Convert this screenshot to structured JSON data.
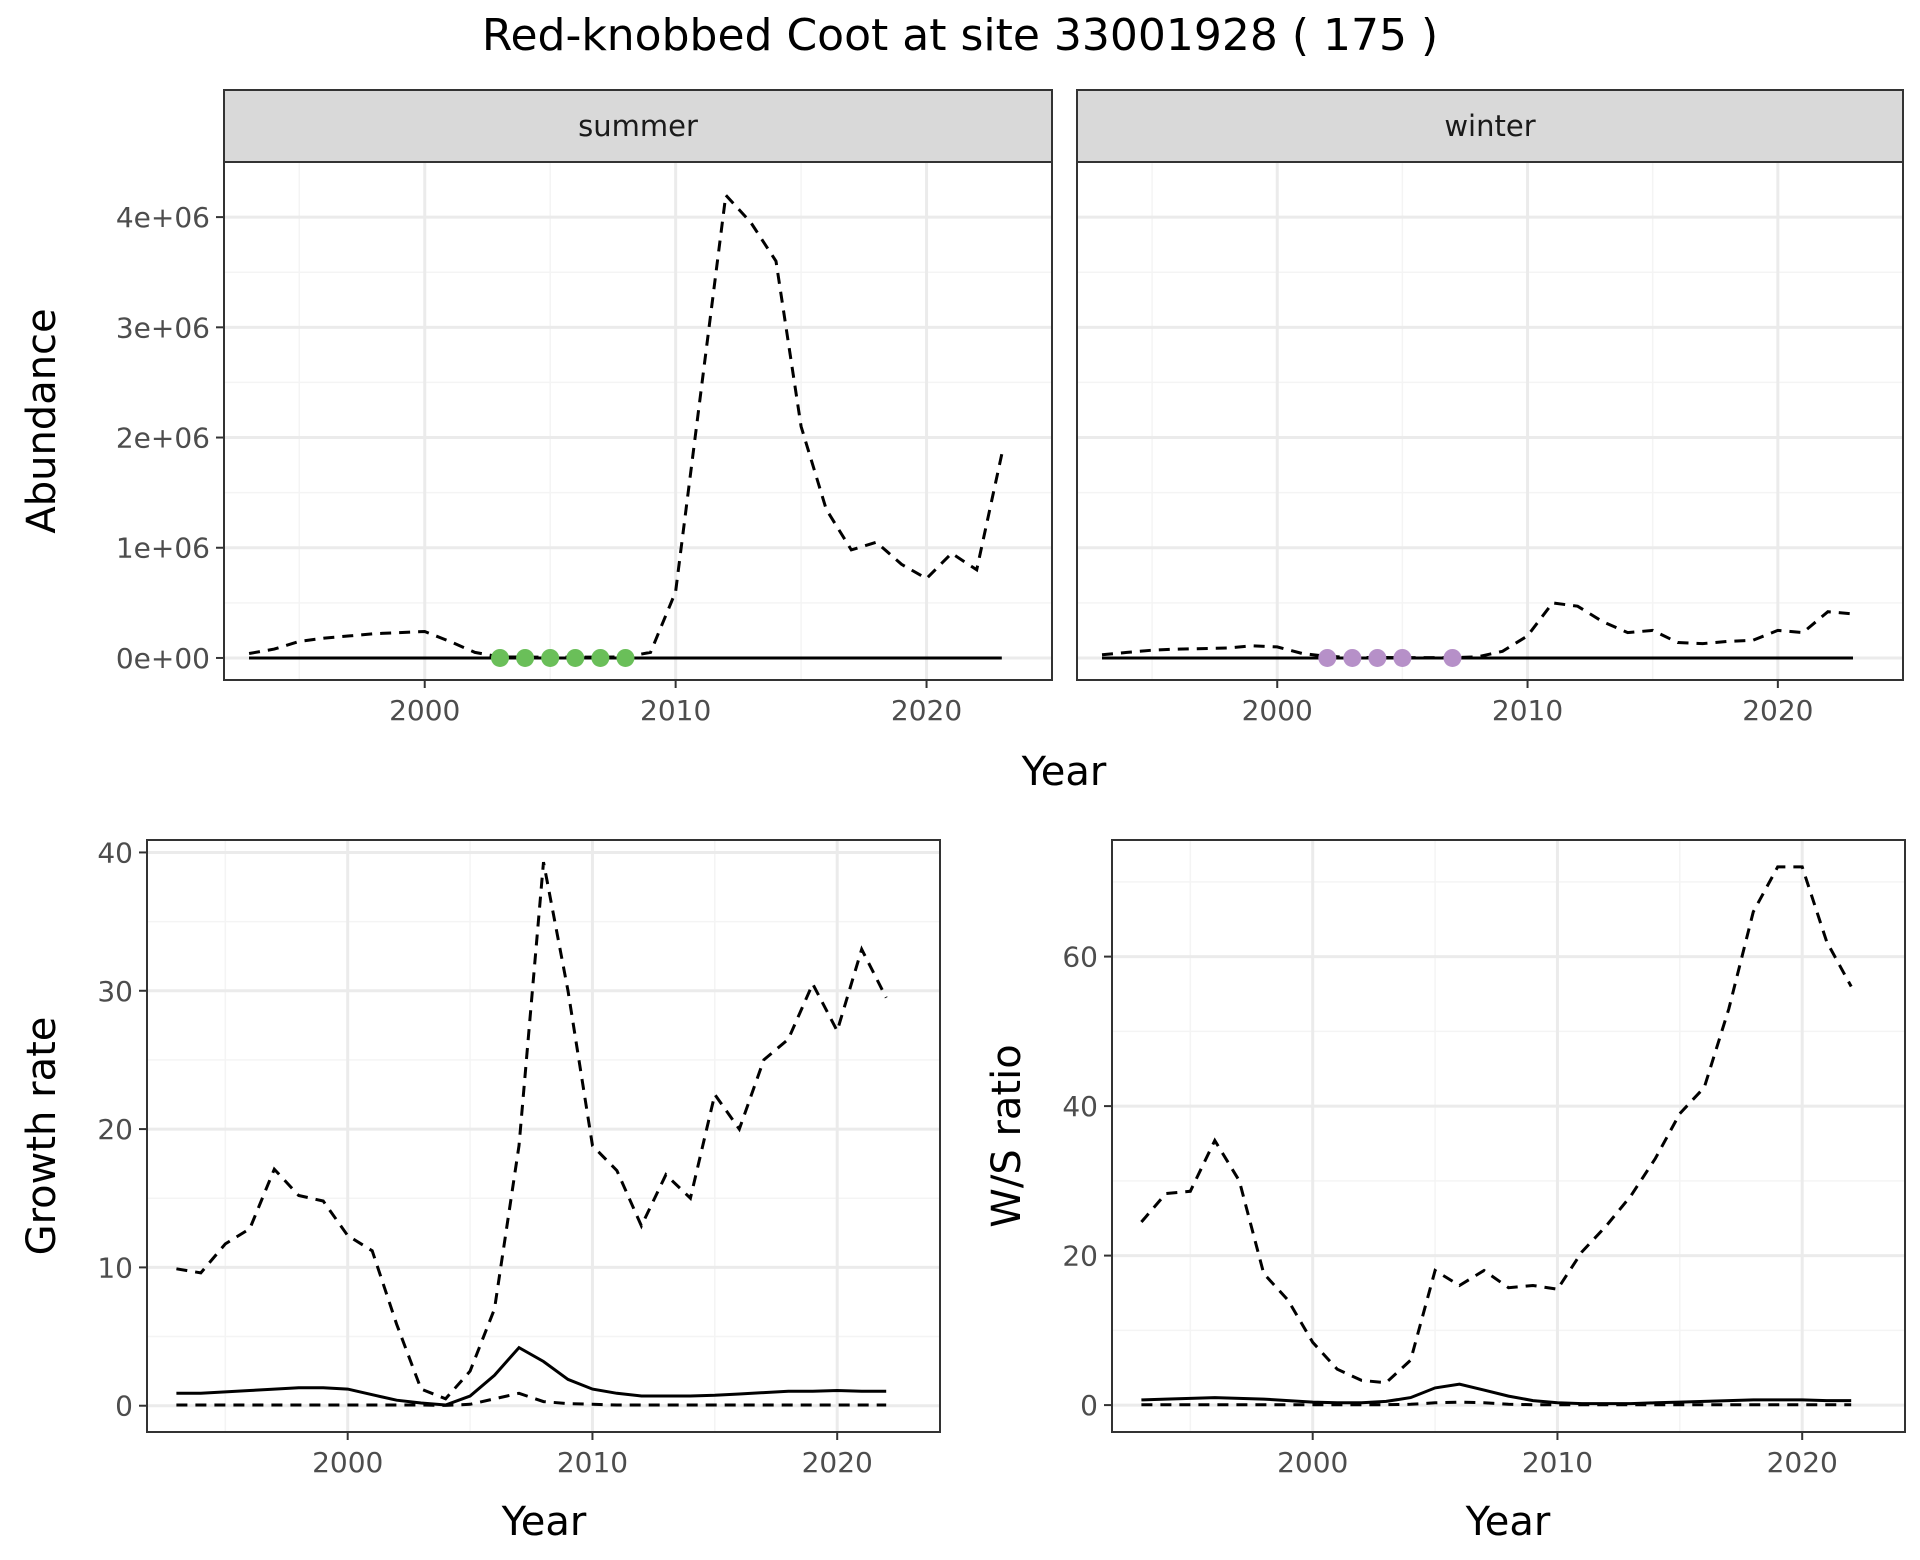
{
  "title": "Red-knobbed Coot at site 33001928 ( 175 )",
  "colors": {
    "summer_points": "#6abf59",
    "winter_points": "#b690c8",
    "strip_fill": "#d9d9d9",
    "grid_major": "#ebebeb",
    "grid_minor": "#f4f4f4",
    "line": "#000000"
  },
  "chart_data": [
    {
      "type": "line",
      "panel": "abundance",
      "facets": [
        "summer",
        "winter"
      ],
      "xlabel": "Year",
      "ylabel": "Abundance",
      "xlim": [
        1992,
        2025
      ],
      "ylim": [
        -200000,
        4500000
      ],
      "xticks": [
        2000,
        2010,
        2020
      ],
      "xtick_labels": [
        "2000",
        "2010",
        "2020"
      ],
      "yticks": [
        0,
        1000000,
        2000000,
        3000000,
        4000000
      ],
      "ytick_labels": [
        "0e+00",
        "1e+06",
        "2e+06",
        "3e+06",
        "4e+06"
      ],
      "x": [
        1993,
        1994,
        1995,
        1996,
        1997,
        1998,
        1999,
        2000,
        2001,
        2002,
        2003,
        2004,
        2005,
        2006,
        2007,
        2008,
        2009,
        2010,
        2011,
        2012,
        2013,
        2014,
        2015,
        2016,
        2017,
        2018,
        2019,
        2020,
        2021,
        2022,
        2023
      ],
      "summer": {
        "upper": [
          40000,
          80000,
          150000,
          180000,
          200000,
          220000,
          230000,
          240000,
          150000,
          50000,
          10000,
          8000,
          8000,
          8000,
          8000,
          10000,
          50000,
          600000,
          2400000,
          4200000,
          3950000,
          3600000,
          2100000,
          1350000,
          980000,
          1050000,
          850000,
          720000,
          950000,
          800000,
          1850000
        ],
        "mid": [
          0,
          0,
          0,
          0,
          0,
          0,
          0,
          0,
          0,
          0,
          0,
          0,
          0,
          0,
          0,
          0,
          0,
          0,
          0,
          0,
          0,
          0,
          0,
          0,
          0,
          0,
          0,
          0,
          0,
          0,
          0
        ],
        "lower": [
          0,
          0,
          0,
          0,
          0,
          0,
          0,
          0,
          0,
          0,
          0,
          0,
          0,
          0,
          0,
          0,
          0,
          0,
          0,
          0,
          0,
          0,
          0,
          0,
          0,
          0,
          0,
          0,
          0,
          0,
          0
        ],
        "observed_x": [
          2003,
          2004,
          2005,
          2006,
          2007,
          2008
        ],
        "observed_y": [
          0,
          0,
          0,
          0,
          0,
          0
        ]
      },
      "winter": {
        "upper": [
          30000,
          50000,
          70000,
          80000,
          85000,
          90000,
          110000,
          100000,
          40000,
          15000,
          5000,
          4000,
          3000,
          3000,
          3000,
          10000,
          60000,
          200000,
          500000,
          470000,
          330000,
          230000,
          250000,
          140000,
          130000,
          150000,
          160000,
          250000,
          230000,
          420000,
          400000
        ],
        "mid": [
          0,
          0,
          0,
          0,
          0,
          0,
          0,
          0,
          0,
          0,
          0,
          0,
          0,
          0,
          0,
          0,
          0,
          0,
          0,
          0,
          0,
          0,
          0,
          0,
          0,
          0,
          0,
          0,
          0,
          0,
          0
        ],
        "lower": [
          0,
          0,
          0,
          0,
          0,
          0,
          0,
          0,
          0,
          0,
          0,
          0,
          0,
          0,
          0,
          0,
          0,
          0,
          0,
          0,
          0,
          0,
          0,
          0,
          0,
          0,
          0,
          0,
          0,
          0,
          0
        ],
        "observed_x": [
          2002,
          2003,
          2004,
          2005,
          2007
        ],
        "observed_y": [
          0,
          0,
          0,
          0,
          0
        ]
      }
    },
    {
      "type": "line",
      "panel": "growth",
      "xlabel": "Year",
      "ylabel": "Growth rate",
      "xlim": [
        1991.8,
        2024.2
      ],
      "ylim": [
        -1.9,
        40.9
      ],
      "xticks": [
        2000,
        2010,
        2020
      ],
      "xtick_labels": [
        "2000",
        "2010",
        "2020"
      ],
      "yticks": [
        0,
        10,
        20,
        30,
        40
      ],
      "ytick_labels": [
        "0",
        "10",
        "20",
        "30",
        "40"
      ],
      "x": [
        1993,
        1994,
        1995,
        1996,
        1997,
        1998,
        1999,
        2000,
        2001,
        2002,
        2003,
        2004,
        2005,
        2006,
        2007,
        2008,
        2009,
        2010,
        2011,
        2012,
        2013,
        2014,
        2015,
        2016,
        2017,
        2018,
        2019,
        2020,
        2021,
        2022
      ],
      "upper": [
        9.9,
        9.6,
        11.7,
        12.8,
        17.1,
        15.2,
        14.8,
        12.3,
        11.2,
        5.9,
        1.2,
        0.5,
        2.5,
        7.0,
        18.8,
        39.3,
        30.0,
        18.8,
        17.0,
        13.0,
        16.7,
        15.0,
        22.5,
        20.0,
        25.0,
        26.5,
        30.5,
        27.1,
        33.0,
        29.5
      ],
      "mid": [
        0.9,
        0.9,
        1.0,
        1.1,
        1.2,
        1.3,
        1.3,
        1.2,
        0.8,
        0.4,
        0.2,
        0.05,
        0.7,
        2.2,
        4.2,
        3.2,
        1.9,
        1.2,
        0.9,
        0.7,
        0.7,
        0.7,
        0.75,
        0.85,
        0.95,
        1.05,
        1.05,
        1.1,
        1.05,
        1.05
      ],
      "lower": [
        0.05,
        0.05,
        0.05,
        0.05,
        0.05,
        0.05,
        0.05,
        0.05,
        0.05,
        0.05,
        0.05,
        0.02,
        0.1,
        0.5,
        0.9,
        0.3,
        0.15,
        0.1,
        0.05,
        0.05,
        0.05,
        0.05,
        0.05,
        0.05,
        0.05,
        0.05,
        0.05,
        0.05,
        0.05,
        0.05
      ]
    },
    {
      "type": "line",
      "panel": "ratio",
      "xlabel": "Year",
      "ylabel": "W/S ratio",
      "xlim": [
        1991.8,
        2024.2
      ],
      "ylim": [
        -3.6,
        75.6
      ],
      "xticks": [
        2000,
        2010,
        2020
      ],
      "xtick_labels": [
        "2000",
        "2010",
        "2020"
      ],
      "yticks": [
        0,
        20,
        40,
        60
      ],
      "ytick_labels": [
        "0",
        "20",
        "40",
        "60"
      ],
      "x": [
        1993,
        1994,
        1995,
        1996,
        1997,
        1998,
        1999,
        2000,
        2001,
        2002,
        2003,
        2004,
        2005,
        2006,
        2007,
        2008,
        2009,
        2010,
        2011,
        2012,
        2013,
        2014,
        2015,
        2016,
        2017,
        2018,
        2019,
        2020,
        2021,
        2022
      ],
      "upper": [
        24.5,
        28.3,
        28.6,
        35.4,
        30.0,
        17.6,
        14.0,
        8.4,
        4.8,
        3.3,
        3.0,
        6.0,
        18.0,
        16.0,
        18.0,
        15.7,
        16.0,
        15.5,
        20.5,
        24.0,
        28.0,
        33.0,
        39.0,
        42.5,
        53.0,
        66.0,
        72.0,
        72.0,
        62.0,
        56.0
      ],
      "mid": [
        0.7,
        0.8,
        0.9,
        1.0,
        0.9,
        0.8,
        0.6,
        0.4,
        0.3,
        0.3,
        0.5,
        1.0,
        2.3,
        2.8,
        2.0,
        1.2,
        0.6,
        0.3,
        0.2,
        0.2,
        0.2,
        0.3,
        0.4,
        0.5,
        0.6,
        0.7,
        0.7,
        0.7,
        0.6,
        0.6
      ],
      "lower": [
        0.05,
        0.05,
        0.05,
        0.05,
        0.05,
        0.05,
        0.05,
        0.05,
        0.05,
        0.05,
        0.05,
        0.1,
        0.3,
        0.4,
        0.3,
        0.1,
        0.05,
        0.05,
        0.05,
        0.05,
        0.05,
        0.05,
        0.05,
        0.05,
        0.05,
        0.05,
        0.05,
        0.05,
        0.05,
        0.05
      ]
    }
  ]
}
